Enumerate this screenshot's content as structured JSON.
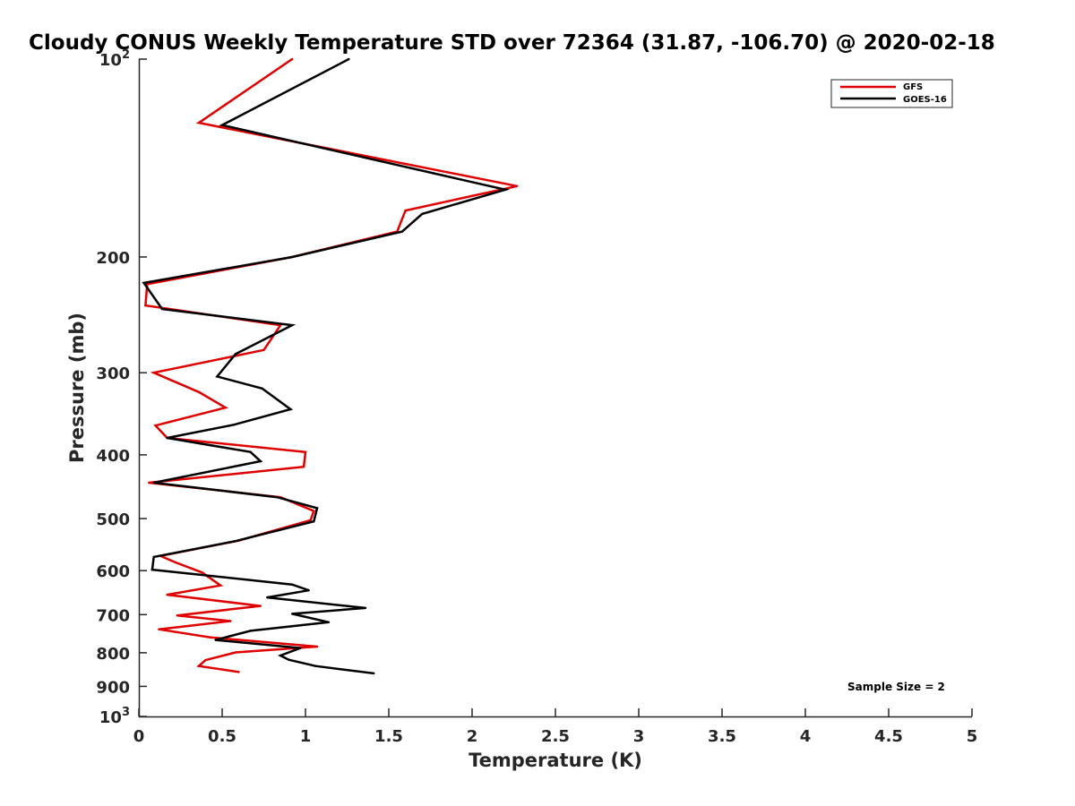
{
  "chart_data": {
    "type": "line",
    "title": "Cloudy CONUS Weekly Temperature STD over 72364 (31.87, -106.70) @ 2020-02-18",
    "xlabel": "Temperature (K)",
    "ylabel": "Pressure (mb)",
    "xlim": [
      0,
      5
    ],
    "ylim": [
      100,
      1000
    ],
    "y_scale": "log",
    "y_reversed": true,
    "grid": false,
    "legend_position": "top-right",
    "x_ticks": [
      0,
      0.5,
      1,
      1.5,
      2,
      2.5,
      3,
      3.5,
      4,
      4.5,
      5
    ],
    "x_tick_labels": [
      "0",
      "0.5",
      "1",
      "1.5",
      "2",
      "2.5",
      "3",
      "3.5",
      "4",
      "4.5",
      "5"
    ],
    "y_ticks": [
      {
        "value": 100,
        "base": "10",
        "exp": "2"
      },
      {
        "value": 200,
        "label": "200"
      },
      {
        "value": 300,
        "label": "300"
      },
      {
        "value": 400,
        "label": "400"
      },
      {
        "value": 500,
        "label": "500"
      },
      {
        "value": 600,
        "label": "600"
      },
      {
        "value": 700,
        "label": "700"
      },
      {
        "value": 800,
        "label": "800"
      },
      {
        "value": 900,
        "label": "900"
      },
      {
        "value": 1000,
        "base": "10",
        "exp": "3"
      }
    ],
    "series": [
      {
        "name": "GFS",
        "color": "#e00000",
        "points": [
          [
            0.92,
            100
          ],
          [
            0.36,
            125
          ],
          [
            2.27,
            156
          ],
          [
            1.6,
            170
          ],
          [
            1.55,
            183
          ],
          [
            0.92,
            200
          ],
          [
            0.05,
            220
          ],
          [
            0.04,
            237
          ],
          [
            0.85,
            254
          ],
          [
            0.75,
            277
          ],
          [
            0.09,
            300
          ],
          [
            0.36,
            321
          ],
          [
            0.52,
            339
          ],
          [
            0.1,
            361
          ],
          [
            0.17,
            377
          ],
          [
            1.0,
            396
          ],
          [
            0.99,
            417
          ],
          [
            0.06,
            441
          ],
          [
            0.85,
            464
          ],
          [
            1.05,
            487
          ],
          [
            1.03,
            503
          ],
          [
            0.6,
            540
          ],
          [
            0.13,
            570
          ],
          [
            0.22,
            583
          ],
          [
            0.38,
            604
          ],
          [
            0.49,
            632
          ],
          [
            0.17,
            653
          ],
          [
            0.73,
            679
          ],
          [
            0.23,
            702
          ],
          [
            0.55,
            716
          ],
          [
            0.12,
            737
          ],
          [
            0.43,
            758
          ],
          [
            1.07,
            783
          ],
          [
            0.58,
            799
          ],
          [
            0.4,
            821
          ],
          [
            0.36,
            838
          ],
          [
            0.6,
            856
          ]
        ]
      },
      {
        "name": "GOES-16",
        "color": "#000000",
        "points": [
          [
            1.26,
            100
          ],
          [
            0.5,
            126
          ],
          [
            2.2,
            158
          ],
          [
            1.7,
            172
          ],
          [
            1.58,
            183
          ],
          [
            0.92,
            200
          ],
          [
            0.03,
            219
          ],
          [
            0.14,
            240
          ],
          [
            0.92,
            254
          ],
          [
            0.58,
            281
          ],
          [
            0.47,
            304
          ],
          [
            0.74,
            317
          ],
          [
            0.91,
            341
          ],
          [
            0.57,
            360
          ],
          [
            0.17,
            377
          ],
          [
            0.67,
            396
          ],
          [
            0.73,
            409
          ],
          [
            0.09,
            441
          ],
          [
            0.83,
            464
          ],
          [
            1.07,
            482
          ],
          [
            1.05,
            505
          ],
          [
            0.58,
            541
          ],
          [
            0.09,
            572
          ],
          [
            0.08,
            598
          ],
          [
            0.92,
            630
          ],
          [
            1.02,
            643
          ],
          [
            0.77,
            659
          ],
          [
            1.36,
            684
          ],
          [
            0.92,
            698
          ],
          [
            1.14,
            719
          ],
          [
            0.67,
            741
          ],
          [
            0.46,
            765
          ],
          [
            0.97,
            787
          ],
          [
            0.85,
            808
          ],
          [
            0.9,
            820
          ],
          [
            1.06,
            838
          ],
          [
            1.41,
            860
          ]
        ]
      }
    ],
    "annotation": "Sample Size = 2"
  }
}
